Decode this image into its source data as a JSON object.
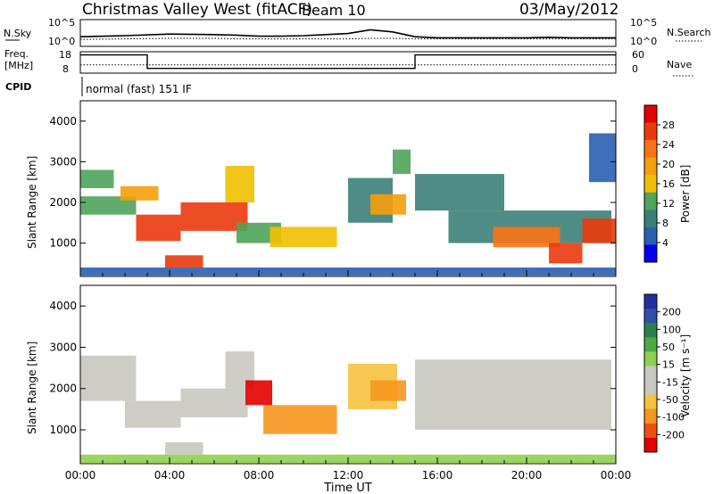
{
  "header": {
    "station": "Christmas Valley West (fitACF)",
    "beam": "Beam 10",
    "date": "03/May/2012"
  },
  "noise_panel": {
    "left_label": "N.Sky",
    "left_ticks": [
      "10^5",
      "10^0"
    ],
    "right_label": "N.Search",
    "right_ticks": [
      "10^5",
      "10^0"
    ]
  },
  "freq_panel": {
    "left_label_1": "Freq.",
    "left_label_2": "[MHz]",
    "left_ticks": [
      "18",
      "8"
    ],
    "right_label": "Nave",
    "right_ticks": [
      "60",
      "0"
    ]
  },
  "cpid_panel": {
    "label": "CPID",
    "text": "normal (fast) 151 IF"
  },
  "colors": {
    "power_scale": [
      "#0000ee",
      "#2a5fb0",
      "#3c7f78",
      "#4fa35a",
      "#f0c000",
      "#f59e0b",
      "#f97316",
      "#ea3a0c",
      "#e30000"
    ],
    "velocity_scale": [
      "#e30000",
      "#f04f12",
      "#f5961e",
      "#f7c33e",
      "#c8c8c0",
      "#c8c8c0",
      "#8fd04e",
      "#4caa44",
      "#2d7f50",
      "#2f4fa8",
      "#1f2fa0"
    ],
    "ground_scatter": "#c8c8c0"
  },
  "chart_data": [
    {
      "type": "line",
      "title": "N.Sky / N.Search",
      "x_unit": "hours UT",
      "x": [
        0,
        2,
        4,
        6,
        7,
        8,
        9,
        10,
        11,
        12,
        13,
        14,
        15,
        16,
        18,
        20,
        21,
        22,
        23,
        24
      ],
      "series": [
        {
          "name": "N.Sky",
          "values": [
            1.8,
            2.0,
            2.3,
            2.2,
            2.1,
            1.9,
            1.9,
            2.0,
            2.2,
            2.4,
            3.1,
            2.7,
            1.8,
            1.6,
            1.6,
            1.6,
            1.7,
            1.6,
            1.6,
            1.6
          ]
        },
        {
          "name": "N.Search",
          "values": [
            1.3,
            1.4,
            1.5,
            1.5,
            1.4,
            1.4,
            1.4,
            1.4,
            1.4,
            1.4,
            1.5,
            1.5,
            1.4,
            1.4,
            1.4,
            1.4,
            1.4,
            1.4,
            1.4,
            1.4
          ]
        }
      ],
      "ylim": [
        0,
        5
      ]
    },
    {
      "type": "line",
      "x_unit": "hours UT",
      "series": [
        {
          "name": "Freq.",
          "x": [
            0,
            3.0,
            3.0,
            15.0,
            15.0,
            24
          ],
          "values": [
            16.5,
            16.5,
            10.2,
            10.2,
            16.5,
            16.5
          ]
        },
        {
          "name": "Nave",
          "x": [
            0,
            3.0,
            3.0,
            15.0,
            15.0,
            24
          ],
          "values": [
            23,
            23,
            23,
            23,
            23,
            23
          ]
        }
      ],
      "ylim_left": [
        8,
        18
      ],
      "ylim_right": [
        0,
        60
      ]
    },
    {
      "type": "heatmap",
      "title": "Power",
      "xlabel": "",
      "ylabel": "Slant Range [km]",
      "xlim": [
        0,
        24
      ],
      "ylim": [
        180,
        4500
      ],
      "x_ticks": [
        "00:00",
        "04:00",
        "08:00",
        "12:00",
        "16:00",
        "20:00",
        "00:00"
      ],
      "y_ticks": [
        1000,
        2000,
        3000,
        4000
      ],
      "colorbar": {
        "label": "Power [dB]",
        "ticks": [
          4,
          8,
          12,
          16,
          20,
          24,
          28
        ],
        "range": [
          0,
          32
        ]
      },
      "regions": [
        {
          "t": [
            0.0,
            1.5
          ],
          "r": [
            2350,
            2800
          ],
          "value": 11
        },
        {
          "t": [
            0.0,
            2.5
          ],
          "r": [
            1700,
            2150
          ],
          "value": 12
        },
        {
          "t": [
            1.8,
            3.5
          ],
          "r": [
            2050,
            2400
          ],
          "value": 18
        },
        {
          "t": [
            2.5,
            4.5
          ],
          "r": [
            1050,
            1700
          ],
          "value": 27
        },
        {
          "t": [
            4.5,
            7.5
          ],
          "r": [
            1300,
            2000
          ],
          "value": 28
        },
        {
          "t": [
            3.8,
            5.5
          ],
          "r": [
            400,
            700
          ],
          "value": 27
        },
        {
          "t": [
            6.5,
            7.8
          ],
          "r": [
            2000,
            2900
          ],
          "value": 17
        },
        {
          "t": [
            7.0,
            9.0
          ],
          "r": [
            1000,
            1500
          ],
          "value": 12
        },
        {
          "t": [
            8.5,
            11.5
          ],
          "r": [
            900,
            1400
          ],
          "value": 16
        },
        {
          "t": [
            12.0,
            14.0
          ],
          "r": [
            1500,
            2600
          ],
          "value": 10
        },
        {
          "t": [
            13.0,
            14.6
          ],
          "r": [
            1700,
            2200
          ],
          "value": 20
        },
        {
          "t": [
            14.0,
            14.8
          ],
          "r": [
            2700,
            3300
          ],
          "value": 14
        },
        {
          "t": [
            15.0,
            19.0
          ],
          "r": [
            1800,
            2700
          ],
          "value": 9
        },
        {
          "t": [
            16.5,
            23.8
          ],
          "r": [
            1000,
            1800
          ],
          "value": 10
        },
        {
          "t": [
            18.5,
            21.5
          ],
          "r": [
            900,
            1400
          ],
          "value": 23
        },
        {
          "t": [
            21.0,
            22.5
          ],
          "r": [
            500,
            1000
          ],
          "value": 28
        },
        {
          "t": [
            22.5,
            24.0
          ],
          "r": [
            1000,
            1600
          ],
          "value": 27
        },
        {
          "t": [
            22.8,
            24.0
          ],
          "r": [
            2500,
            3700
          ],
          "value": 7
        },
        {
          "t": [
            0.0,
            24.0
          ],
          "r": [
            200,
            400
          ],
          "value": 6
        }
      ]
    },
    {
      "type": "heatmap",
      "title": "Velocity",
      "xlabel": "Time UT",
      "ylabel": "Slant Range [km]",
      "xlim": [
        0,
        24
      ],
      "ylim": [
        180,
        4500
      ],
      "x_ticks": [
        "00:00",
        "04:00",
        "08:00",
        "12:00",
        "16:00",
        "20:00",
        "00:00"
      ],
      "y_ticks": [
        1000,
        2000,
        3000,
        4000
      ],
      "colorbar": {
        "label": "Velocity [m s⁻¹]",
        "ticks": [
          200,
          100,
          50,
          15,
          -15,
          -50,
          -100,
          -200
        ],
        "range": [
          -250,
          250
        ]
      },
      "regions": [
        {
          "t": [
            0.0,
            2.5
          ],
          "r": [
            1700,
            2800
          ],
          "value": 0
        },
        {
          "t": [
            2.0,
            4.5
          ],
          "r": [
            1050,
            1700
          ],
          "value": 0
        },
        {
          "t": [
            4.5,
            7.5
          ],
          "r": [
            1300,
            2000
          ],
          "value": 0
        },
        {
          "t": [
            3.8,
            5.5
          ],
          "r": [
            400,
            700
          ],
          "value": 0
        },
        {
          "t": [
            6.5,
            7.8
          ],
          "r": [
            2000,
            2900
          ],
          "value": 0
        },
        {
          "t": [
            7.4,
            8.6
          ],
          "r": [
            1600,
            2200
          ],
          "value": -220
        },
        {
          "t": [
            8.2,
            11.5
          ],
          "r": [
            900,
            1600
          ],
          "value": -90
        },
        {
          "t": [
            12.0,
            14.2
          ],
          "r": [
            1500,
            2600
          ],
          "value": -40
        },
        {
          "t": [
            13.0,
            14.6
          ],
          "r": [
            1700,
            2200
          ],
          "value": -60
        },
        {
          "t": [
            15.0,
            23.8
          ],
          "r": [
            1000,
            2700
          ],
          "value": 0
        },
        {
          "t": [
            0.0,
            24.0
          ],
          "r": [
            200,
            400
          ],
          "value": 20
        }
      ]
    }
  ],
  "axes": {
    "time_label": "Time UT",
    "y_label": "Slant Range [km]",
    "x_ticks": [
      "00:00",
      "04:00",
      "08:00",
      "12:00",
      "16:00",
      "20:00",
      "00:00"
    ],
    "y_ticks": [
      "1000",
      "2000",
      "3000",
      "4000"
    ],
    "power_label": "Power [dB]",
    "power_ticks": [
      "4",
      "8",
      "12",
      "16",
      "20",
      "24",
      "28"
    ],
    "velocity_label": "Velocity [m s⁻¹]",
    "velocity_ticks": [
      "200",
      "100",
      "50",
      "15",
      "-15",
      "-50",
      "-100",
      "-200"
    ]
  }
}
